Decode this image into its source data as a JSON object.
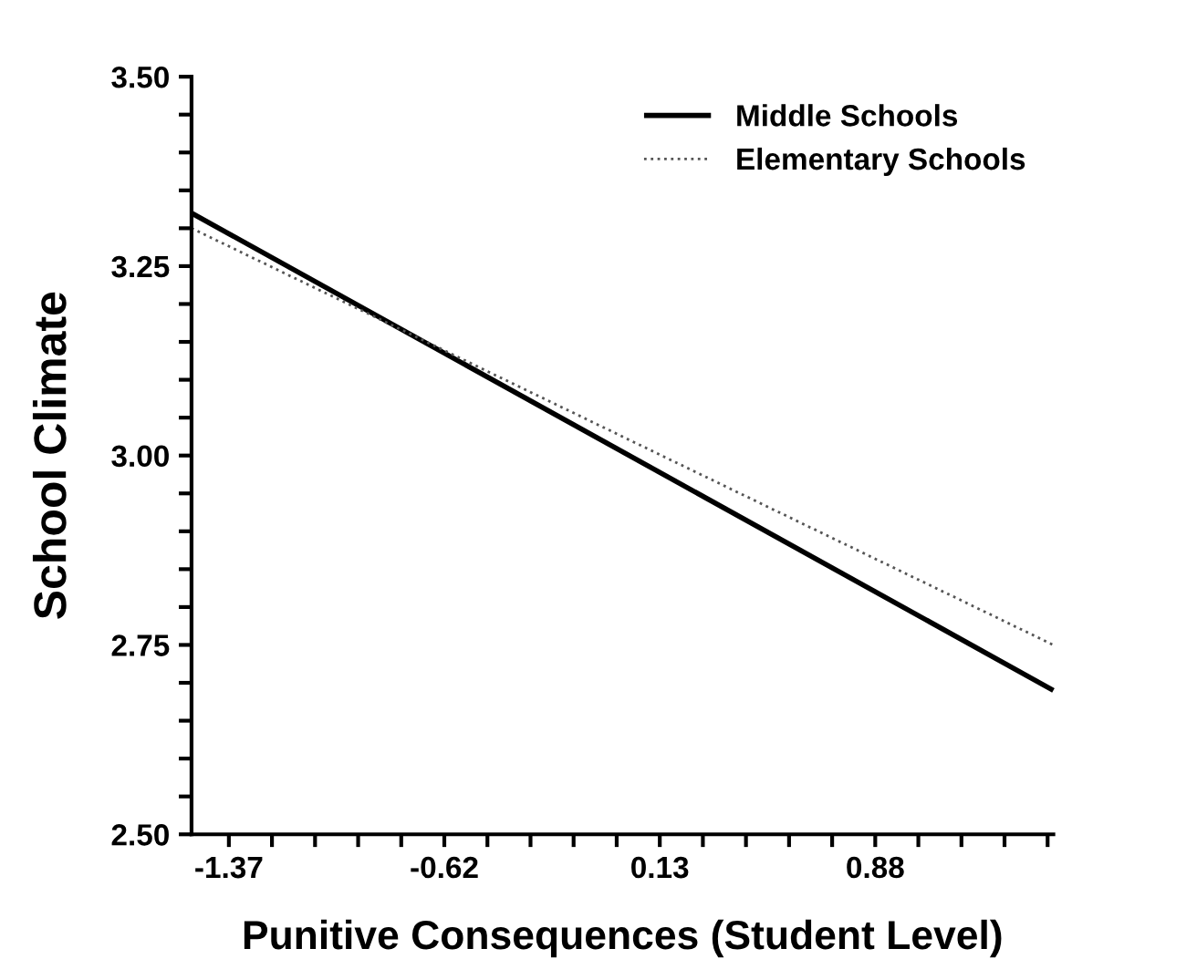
{
  "chart_data": {
    "type": "line",
    "xlabel": "Punitive Consequences (Student Level)",
    "ylabel": "School Climate",
    "xlim": [
      -1.5,
      1.5
    ],
    "ylim": [
      2.5,
      3.5
    ],
    "xticks": [
      {
        "value": -1.37,
        "label": "-1.37"
      },
      {
        "value": -1.22,
        "label": null
      },
      {
        "value": -1.07,
        "label": null
      },
      {
        "value": -0.92,
        "label": null
      },
      {
        "value": -0.77,
        "label": null
      },
      {
        "value": -0.62,
        "label": "-0.62"
      },
      {
        "value": -0.47,
        "label": null
      },
      {
        "value": -0.32,
        "label": null
      },
      {
        "value": -0.17,
        "label": null
      },
      {
        "value": -0.02,
        "label": null
      },
      {
        "value": 0.13,
        "label": "0.13"
      },
      {
        "value": 0.28,
        "label": null
      },
      {
        "value": 0.43,
        "label": null
      },
      {
        "value": 0.58,
        "label": null
      },
      {
        "value": 0.73,
        "label": null
      },
      {
        "value": 0.88,
        "label": "0.88"
      },
      {
        "value": 1.03,
        "label": null
      },
      {
        "value": 1.18,
        "label": null
      },
      {
        "value": 1.33,
        "label": null
      },
      {
        "value": 1.48,
        "label": null
      }
    ],
    "yticks": [
      {
        "value": 2.5,
        "label": "2.50"
      },
      {
        "value": 2.55,
        "label": null
      },
      {
        "value": 2.6,
        "label": null
      },
      {
        "value": 2.65,
        "label": null
      },
      {
        "value": 2.7,
        "label": null
      },
      {
        "value": 2.75,
        "label": "2.75"
      },
      {
        "value": 2.8,
        "label": null
      },
      {
        "value": 2.85,
        "label": null
      },
      {
        "value": 2.9,
        "label": null
      },
      {
        "value": 2.95,
        "label": null
      },
      {
        "value": 3.0,
        "label": "3.00"
      },
      {
        "value": 3.05,
        "label": null
      },
      {
        "value": 3.1,
        "label": null
      },
      {
        "value": 3.15,
        "label": null
      },
      {
        "value": 3.2,
        "label": null
      },
      {
        "value": 3.25,
        "label": "3.25"
      },
      {
        "value": 3.3,
        "label": null
      },
      {
        "value": 3.35,
        "label": null
      },
      {
        "value": 3.4,
        "label": null
      },
      {
        "value": 3.45,
        "label": null
      },
      {
        "value": 3.5,
        "label": "3.50"
      }
    ],
    "x": [
      -1.5,
      1.5
    ],
    "legend": "top right",
    "grid": false,
    "marker": "none",
    "series": [
      {
        "name": "Middle Schools",
        "color": "#000000",
        "line_style": "solid",
        "values": [
          3.32,
          2.69
        ]
      },
      {
        "name": "Elementary Schools",
        "color": "#555555",
        "line_style": "dotted",
        "values": [
          3.3,
          2.75
        ]
      }
    ]
  }
}
